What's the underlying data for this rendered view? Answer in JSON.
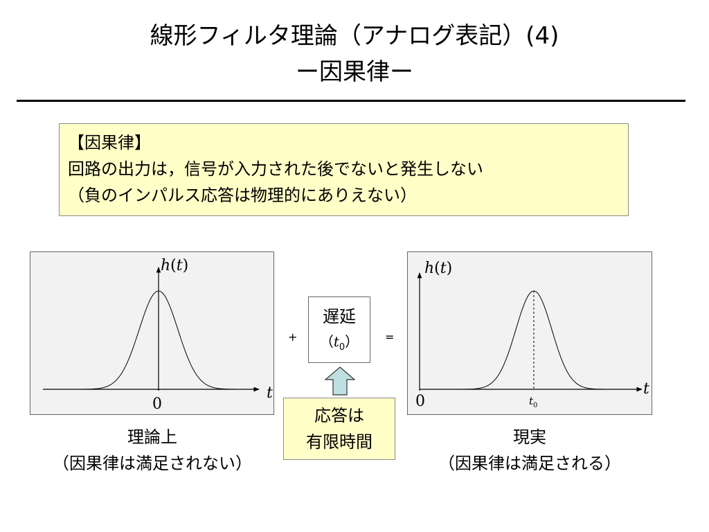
{
  "slide": {
    "title_line1": "線形フィルタ理論（アナログ表記）(4)",
    "title_line2": "ー因果律ー"
  },
  "definition": {
    "heading": "【因果律】",
    "line1": "回路の出力は，信号が入力された後でないと発生しない",
    "line2": "（負のインパルス応答は物理的にありえない）"
  },
  "theory_graph": {
    "y_label_func": "h",
    "y_label_arg": "t",
    "x_label": "t",
    "origin_label": "0",
    "caption_line1": "理論上",
    "caption_line2": "（因果律は満足されない）"
  },
  "delay_box": {
    "label": "遅延",
    "param_open": "（",
    "param_var": "t",
    "param_sub": "0",
    "param_close": "）"
  },
  "operators": {
    "plus": "+",
    "equal": "="
  },
  "finite_box": {
    "line1": "応答は",
    "line2": "有限時間"
  },
  "real_graph": {
    "y_label_func": "h",
    "y_label_arg": "t",
    "x_label": "t",
    "origin_label": "0",
    "peak_label_var": "t",
    "peak_label_sub": "0",
    "caption_line1": "現実",
    "caption_line2": "（因果律は満足される）"
  },
  "colors": {
    "note_fill": "#ffffc8",
    "panel_fill": "#f2f2f2",
    "arrow_fill": "#bfdfe3"
  }
}
